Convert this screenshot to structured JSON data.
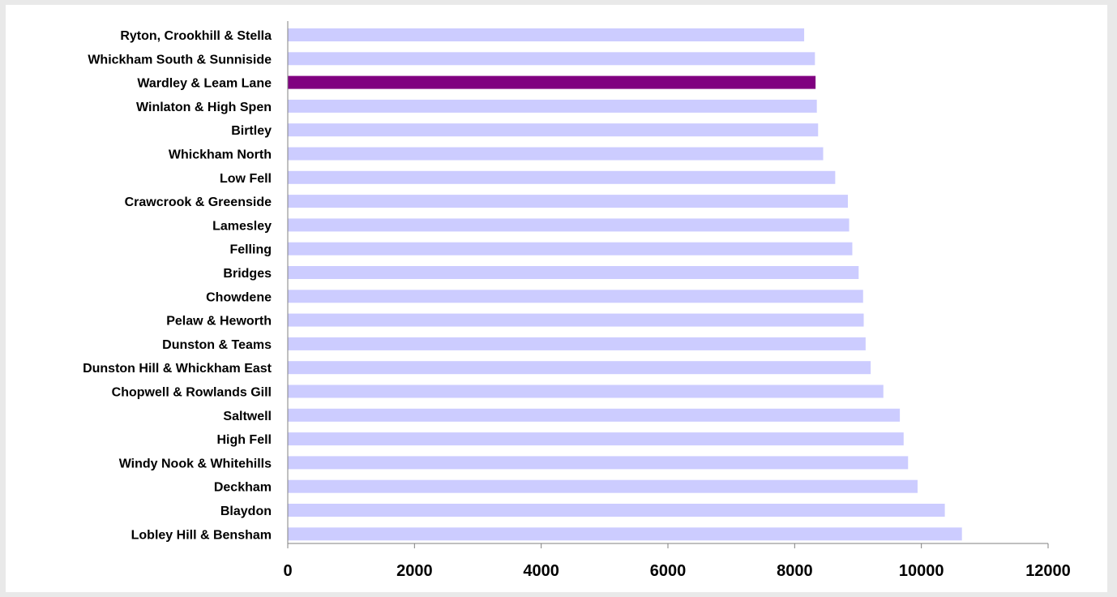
{
  "chart_data": {
    "type": "bar",
    "orientation": "horizontal",
    "title": "",
    "xlabel": "",
    "ylabel": "",
    "xlim": [
      0,
      12000
    ],
    "xticks": [
      0,
      2000,
      4000,
      6000,
      8000,
      10000,
      12000
    ],
    "grid": false,
    "legend": "none",
    "colors": {
      "bar": "#ccccff",
      "highlight": "#800080",
      "axis": "#808080"
    },
    "categories": [
      "Ryton, Crookhill & Stella",
      "Whickham South & Sunniside",
      "Wardley & Leam Lane",
      "Winlaton & High Spen",
      "Birtley",
      "Whickham North",
      "Low Fell",
      "Crawcrook & Greenside",
      "Lamesley",
      "Felling",
      "Bridges",
      "Chowdene",
      "Pelaw & Heworth",
      "Dunston & Teams",
      "Dunston Hill & Whickham East",
      "Chopwell & Rowlands Gill",
      "Saltwell",
      "High Fell",
      "Windy Nook & Whitehills",
      "Deckham",
      "Blaydon",
      "Lobley Hill & Bensham"
    ],
    "values": [
      8150,
      8320,
      8330,
      8350,
      8370,
      8450,
      8640,
      8840,
      8860,
      8910,
      9010,
      9080,
      9090,
      9120,
      9200,
      9400,
      9660,
      9720,
      9790,
      9940,
      10370,
      10640
    ],
    "highlight_category": "Wardley & Leam Lane"
  }
}
